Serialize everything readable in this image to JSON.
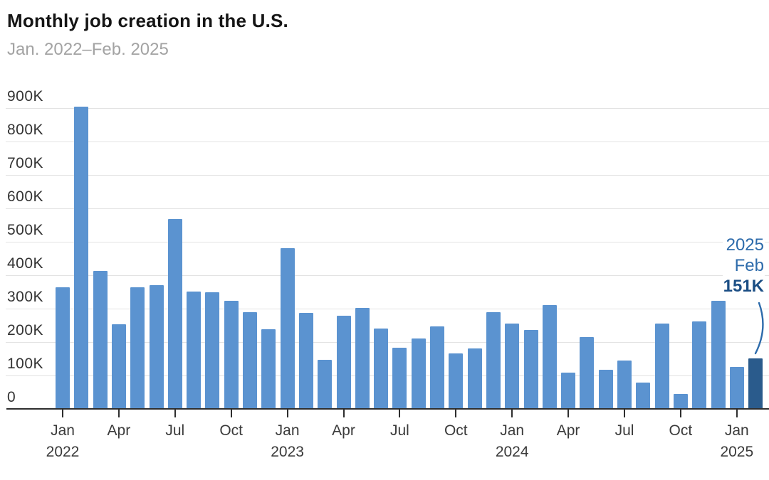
{
  "chart_data": {
    "type": "bar",
    "title": "Monthly job creation in the U.S.",
    "subtitle": "Jan. 2022–Feb. 2025",
    "ylabel": "",
    "xlabel": "",
    "ylim": [
      0,
      900
    ],
    "yunit": "K",
    "grid": true,
    "ytick_labels": [
      "0",
      "100K",
      "200K",
      "300K",
      "400K",
      "500K",
      "600K",
      "700K",
      "800K",
      "900K"
    ],
    "categories": [
      "Jan 2022",
      "Feb 2022",
      "Mar 2022",
      "Apr 2022",
      "May 2022",
      "Jun 2022",
      "Jul 2022",
      "Aug 2022",
      "Sep 2022",
      "Oct 2022",
      "Nov 2022",
      "Dec 2022",
      "Jan 2023",
      "Feb 2023",
      "Mar 2023",
      "Apr 2023",
      "May 2023",
      "Jun 2023",
      "Jul 2023",
      "Aug 2023",
      "Sep 2023",
      "Oct 2023",
      "Nov 2023",
      "Dec 2023",
      "Jan 2024",
      "Feb 2024",
      "Mar 2024",
      "Apr 2024",
      "May 2024",
      "Jun 2024",
      "Jul 2024",
      "Aug 2024",
      "Sep 2024",
      "Oct 2024",
      "Nov 2024",
      "Dec 2024",
      "Jan 2025",
      "Feb 2025"
    ],
    "values": [
      364,
      904,
      414,
      254,
      364,
      370,
      568,
      352,
      350,
      324,
      290,
      239,
      482,
      287,
      146,
      278,
      303,
      240,
      184,
      210,
      246,
      165,
      182,
      290,
      256,
      236,
      310,
      108,
      216,
      118,
      144,
      78,
      255,
      44,
      261,
      323,
      125,
      151
    ],
    "highlight_index": 37,
    "xticks": [
      {
        "i": 0,
        "month": "Jan",
        "year": "2022"
      },
      {
        "i": 3,
        "month": "Apr"
      },
      {
        "i": 6,
        "month": "Jul"
      },
      {
        "i": 9,
        "month": "Oct"
      },
      {
        "i": 12,
        "month": "Jan",
        "year": "2023"
      },
      {
        "i": 15,
        "month": "Apr"
      },
      {
        "i": 18,
        "month": "Jul"
      },
      {
        "i": 21,
        "month": "Oct"
      },
      {
        "i": 24,
        "month": "Jan",
        "year": "2024"
      },
      {
        "i": 27,
        "month": "Apr"
      },
      {
        "i": 30,
        "month": "Jul"
      },
      {
        "i": 33,
        "month": "Oct"
      },
      {
        "i": 36,
        "month": "Jan",
        "year": "2025"
      }
    ],
    "annotation": {
      "line1": "2025",
      "line2": "Feb",
      "line3": "151K"
    },
    "legend": null,
    "colors": {
      "bar": "#5b93d0",
      "highlight_bar": "#2a5b8c",
      "annotation_text": "#2d6bab",
      "annotation_value": "#1b4e84",
      "gridline": "#e3e3e3",
      "axis": "#2e2e2e",
      "title_text": "#151515",
      "subtitle_text": "#a3a3a3"
    }
  }
}
